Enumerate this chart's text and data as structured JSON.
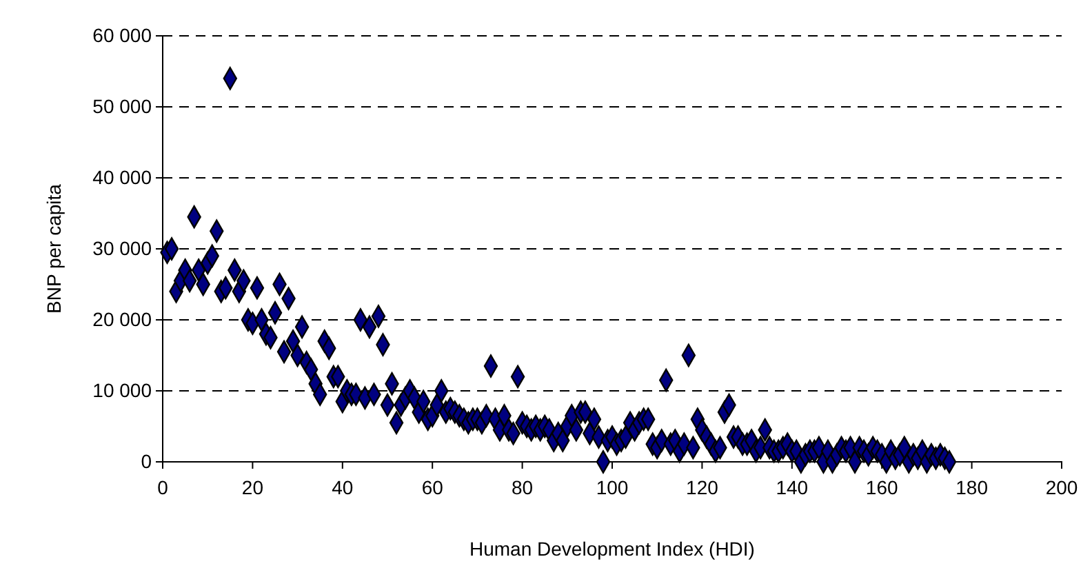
{
  "chart_data": {
    "type": "scatter",
    "xlabel": "Human Development Index (HDI)",
    "ylabel": "BNP per capita",
    "xlim": [
      0,
      200
    ],
    "xticks": [
      0,
      20,
      40,
      60,
      80,
      100,
      120,
      140,
      160,
      180,
      200
    ],
    "ylim": [
      0,
      60000
    ],
    "yticks": [
      {
        "value": 0,
        "label": "0"
      },
      {
        "value": 10000,
        "label": "10 000"
      },
      {
        "value": 20000,
        "label": "20 000"
      },
      {
        "value": 30000,
        "label": "30 000"
      },
      {
        "value": 40000,
        "label": "40 000"
      },
      {
        "value": 50000,
        "label": "50 000"
      },
      {
        "value": 60000,
        "label": "60 000"
      }
    ],
    "grid": "y",
    "marker": "diamond",
    "series": [
      {
        "color": "#000080",
        "x": [
          1,
          2,
          3,
          4,
          5,
          6,
          7,
          8,
          9,
          10,
          11,
          12,
          13,
          14,
          15,
          16,
          17,
          18,
          19,
          20,
          21,
          22,
          23,
          24,
          25,
          26,
          27,
          28,
          29,
          30,
          31,
          32,
          33,
          34,
          35,
          36,
          37,
          38,
          39,
          40,
          41,
          42,
          43,
          44,
          45,
          46,
          47,
          48,
          49,
          50,
          51,
          52,
          53,
          54,
          55,
          56,
          57,
          58,
          59,
          60,
          61,
          62,
          63,
          64,
          65,
          66,
          67,
          68,
          69,
          70,
          71,
          72,
          73,
          74,
          75,
          76,
          77,
          78,
          79,
          80,
          81,
          82,
          83,
          84,
          85,
          86,
          87,
          88,
          89,
          90,
          91,
          92,
          93,
          94,
          95,
          96,
          97,
          98,
          99,
          100,
          101,
          102,
          103,
          104,
          105,
          106,
          107,
          108,
          109,
          110,
          111,
          112,
          113,
          114,
          115,
          116,
          117,
          118,
          119,
          120,
          121,
          122,
          123,
          124,
          125,
          126,
          127,
          128,
          129,
          130,
          131,
          132,
          133,
          134,
          135,
          136,
          137,
          138,
          139,
          140,
          141,
          142,
          143,
          144,
          145,
          146,
          147,
          148,
          149,
          150,
          151,
          152,
          153,
          154,
          155,
          156,
          157,
          158,
          159,
          160,
          161,
          162,
          163,
          164,
          165,
          166,
          167,
          168,
          169,
          170,
          171,
          172,
          173,
          174,
          175
        ],
        "values": [
          29500,
          30000,
          24000,
          25500,
          27000,
          25500,
          34500,
          27000,
          25000,
          28000,
          29000,
          32500,
          24000,
          24500,
          54000,
          27000,
          24000,
          25500,
          20000,
          19500,
          24500,
          20000,
          18000,
          17500,
          21000,
          25000,
          15500,
          23000,
          17000,
          15000,
          19000,
          14000,
          13000,
          11000,
          9500,
          17000,
          16000,
          12000,
          12000,
          8500,
          10000,
          9500,
          9500,
          20000,
          9000,
          19000,
          9500,
          20500,
          16500,
          8000,
          11000,
          5500,
          8000,
          9000,
          10000,
          9000,
          7000,
          8500,
          6000,
          6500,
          8000,
          10000,
          7000,
          7500,
          7000,
          6500,
          6000,
          5500,
          6000,
          6000,
          5500,
          6500,
          13500,
          6000,
          4500,
          6500,
          4500,
          4000,
          12000,
          5500,
          5000,
          4500,
          5000,
          4500,
          5000,
          4500,
          3000,
          4000,
          3000,
          5000,
          6500,
          4500,
          7000,
          7000,
          4000,
          6000,
          3500,
          0,
          3000,
          3500,
          2500,
          3000,
          3500,
          5500,
          4500,
          5500,
          6000,
          6000,
          2500,
          2000,
          3000,
          11500,
          2500,
          3000,
          1500,
          2500,
          15000,
          2000,
          6000,
          4500,
          3500,
          2500,
          1500,
          2000,
          7000,
          8000,
          3500,
          3500,
          2500,
          2500,
          3000,
          1500,
          2000,
          4500,
          2000,
          1500,
          1500,
          2000,
          2500,
          1500,
          1500,
          0,
          1000,
          1500,
          1500,
          2000,
          0,
          1500,
          0,
          1000,
          2000,
          1500,
          2000,
          0,
          2000,
          1500,
          1000,
          2000,
          1500,
          1000,
          0,
          1500,
          500,
          1000,
          2000,
          0,
          1000,
          500,
          1500,
          0,
          1000,
          500,
          1000,
          500,
          0
        ]
      }
    ]
  }
}
